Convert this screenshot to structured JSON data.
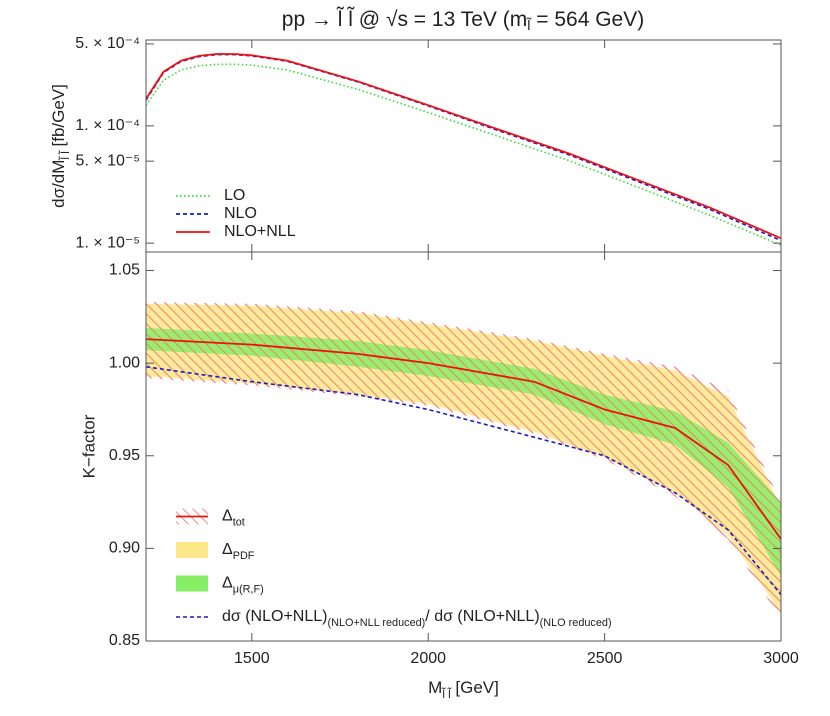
{
  "chart_data": [
    {
      "type": "line",
      "title_parts": [
        {
          "text": "pp → l̃ l̃ @ √s = 13 TeV (m"
        },
        {
          "text": "l̃",
          "sub": true
        },
        {
          "text": " = 564 GeV)"
        }
      ],
      "ylabel_parts": [
        {
          "text": "dσ/dM"
        },
        {
          "text": "l̃ l̃",
          "sub": true
        },
        {
          "text": " [fb/GeV]"
        }
      ],
      "log_y": true,
      "x": [
        1200,
        1250,
        1300,
        1350,
        1400,
        1450,
        1500,
        1600,
        1800,
        2000,
        2200,
        2400,
        2600,
        2800,
        3000
      ],
      "series": [
        {
          "name": "LO",
          "color": "#33dd33",
          "dash": "dotted",
          "values": [
            0.00015,
            0.000245,
            0.0003,
            0.000325,
            0.000335,
            0.000335,
            0.00033,
            0.0003,
            0.000205,
            0.00013,
            8.1e-05,
            5.05e-05,
            2.95e-05,
            1.72e-05,
            9.6e-06
          ]
        },
        {
          "name": "NLO",
          "color": "#1a1acc",
          "dash": "dashed",
          "values": [
            0.000166,
            0.000285,
            0.000355,
            0.00039,
            0.000405,
            0.000405,
            0.000395,
            0.000356,
            0.000237,
            0.000148,
            9.1e-05,
            5.65e-05,
            3.3e-05,
            1.93e-05,
            1.05e-05
          ]
        },
        {
          "name": "NLO+NLL",
          "color": "#ee1111",
          "dash": "solid",
          "values": [
            0.00017,
            0.00029,
            0.00036,
            0.000395,
            0.00041,
            0.00041,
            0.0004,
            0.00036,
            0.00024,
            0.00015,
            9.3e-05,
            5.8e-05,
            3.4e-05,
            2e-05,
            1.1e-05
          ]
        }
      ],
      "xlim": [
        1200,
        3000
      ],
      "xticks": [
        1500,
        2000,
        2500,
        3000
      ],
      "ylim": [
        8.4e-06,
        0.00054
      ],
      "yticks": [
        {
          "value": 0.0005,
          "label": "5. × 10⁻⁴"
        },
        {
          "value": 0.0001,
          "label": "1. × 10⁻⁴"
        },
        {
          "value": 5e-05,
          "label": "5. × 10⁻⁵"
        },
        {
          "value": 1e-05,
          "label": "1. × 10⁻⁵"
        }
      ],
      "legend": "lower-left"
    },
    {
      "type": "band",
      "ylabel": "K−factor",
      "xlabel_parts": [
        {
          "text": "M"
        },
        {
          "text": "l̃ l̃",
          "sub": true
        },
        {
          "text": "  [GeV]"
        }
      ],
      "x": [
        1200,
        1500,
        1800,
        2000,
        2300,
        2500,
        2700,
        2850,
        3000
      ],
      "bands": [
        {
          "name_parts": [
            {
              "text": "Δ"
            },
            {
              "text": "tot",
              "sub": true
            }
          ],
          "color": "#f07070",
          "hatch": true,
          "line_color": "#ee1111",
          "upper": [
            1.033,
            1.032,
            1.028,
            1.022,
            1.013,
            1.005,
            0.998,
            0.985,
            0.925
          ],
          "center": [
            1.013,
            1.01,
            1.005,
            1.0,
            0.99,
            0.975,
            0.965,
            0.945,
            0.905
          ],
          "lower": [
            0.992,
            0.988,
            0.982,
            0.977,
            0.962,
            0.948,
            0.928,
            0.905,
            0.862
          ]
        },
        {
          "name_parts": [
            {
              "text": "Δ"
            },
            {
              "text": "PDF",
              "sub": true
            }
          ],
          "color": "#fde88a",
          "upper": [
            1.032,
            1.031,
            1.027,
            1.021,
            1.012,
            1.004,
            0.996,
            0.982,
            0.922
          ],
          "lower": [
            0.993,
            0.989,
            0.983,
            0.978,
            0.963,
            0.949,
            0.93,
            0.907,
            0.865
          ]
        },
        {
          "name_parts": [
            {
              "text": "Δ"
            },
            {
              "text": "μ(R,F)",
              "sub": true
            }
          ],
          "color": "#88ee66",
          "upper": [
            1.019,
            1.016,
            1.012,
            1.007,
            0.997,
            0.983,
            0.974,
            0.957,
            0.925
          ],
          "lower": [
            1.007,
            1.004,
            0.998,
            0.993,
            0.983,
            0.967,
            0.956,
            0.933,
            0.885
          ]
        }
      ],
      "series": [
        {
          "name_parts": [
            {
              "text": "dσ (NLO+NLL)"
            },
            {
              "text": "(NLO+NLL reduced)",
              "sub": true
            },
            {
              "text": "/ dσ (NLO+NLL)"
            },
            {
              "text": "(NLO reduced)",
              "sub": true
            }
          ],
          "color": "#1a1acc",
          "dash": "dashed",
          "values": [
            0.998,
            0.99,
            0.983,
            0.975,
            0.96,
            0.95,
            0.93,
            0.91,
            0.875
          ]
        }
      ],
      "xlim": [
        1200,
        3000
      ],
      "xticks": [
        1500,
        2000,
        2500,
        3000
      ],
      "ylim": [
        0.85,
        1.06
      ],
      "yticks": [
        {
          "value": 1.05,
          "label": "1.05"
        },
        {
          "value": 1.0,
          "label": "1.00"
        },
        {
          "value": 0.95,
          "label": "0.95"
        },
        {
          "value": 0.9,
          "label": "0.90"
        },
        {
          "value": 0.85,
          "label": "0.85"
        }
      ],
      "legend": "lower-left"
    }
  ]
}
